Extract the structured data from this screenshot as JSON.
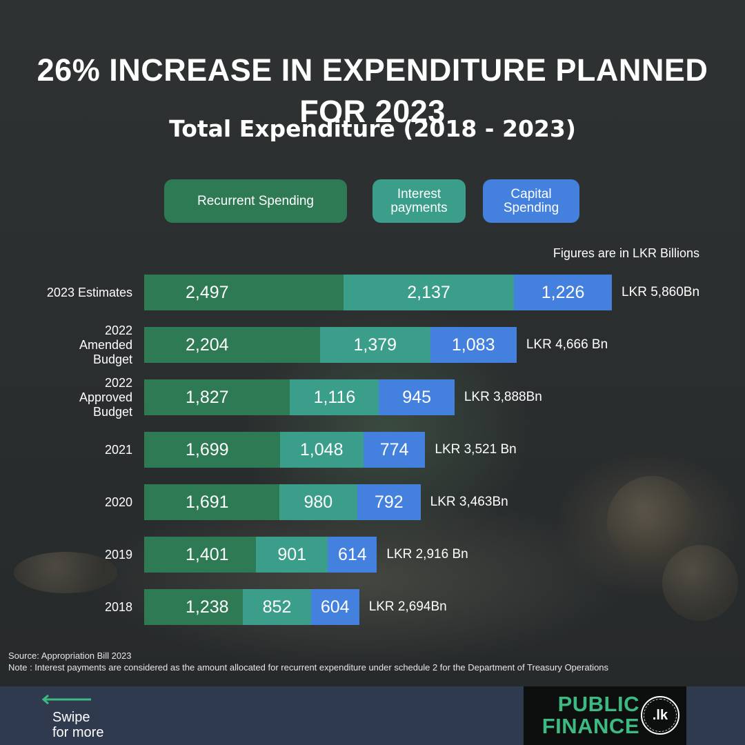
{
  "headline": "26% INCREASE IN EXPENDITURE PLANNED FOR 2023",
  "units_note": "Figures are in LKR Billions",
  "colors": {
    "recurrent": "#2e7a54",
    "interest": "#3a9e8a",
    "capital": "#4480dd",
    "footer": "#2f3a4f",
    "logo_text": "#3dba82"
  },
  "chart_data": {
    "type": "bar",
    "orientation": "horizontal",
    "stacked": true,
    "title": "Total Expenditure (2018 - 2023)",
    "categories": [
      "2023 Estimates",
      "2022\nAmended\nBudget",
      "2022\nApproved\nBudget",
      "2021",
      "2020",
      "2019",
      "2018"
    ],
    "series": [
      {
        "name": "Recurrent Spending",
        "values": [
          2497,
          2204,
          1827,
          1699,
          1691,
          1401,
          1238
        ],
        "labels": [
          "2,497",
          "2,204",
          "1,827",
          "1,699",
          "1,691",
          "1,401",
          "1,238"
        ]
      },
      {
        "name": "Interest\npayments",
        "values": [
          2137,
          1379,
          1116,
          1048,
          980,
          901,
          852
        ],
        "labels": [
          "2,137",
          "1,379",
          "1,116",
          "1,048",
          "980",
          "901",
          "852"
        ]
      },
      {
        "name": "Capital\nSpending",
        "values": [
          1226,
          1083,
          945,
          774,
          792,
          614,
          604
        ],
        "labels": [
          "1,226",
          "1,083",
          "945",
          "774",
          "792",
          "614",
          "604"
        ]
      }
    ],
    "totals": [
      "LKR 5,860Bn",
      "LKR 4,666 Bn",
      "LKR 3,888Bn",
      "LKR 3,521 Bn",
      "LKR 3,463Bn",
      "LKR 2,916 Bn",
      "LKR 2,694Bn"
    ],
    "legend": "top",
    "grid": false
  },
  "footnotes": {
    "source": "Source: Appropriation Bill 2023",
    "note": "Note : Interest payments are considered as the amount allocated for recurrent expenditure under schedule 2 for the Department of Treasury Operations"
  },
  "footer": {
    "swipe_text": "Swipe\nfor more",
    "swipe_icon": "arrow-left-icon",
    "logo_text": "PUBLIC\nFINANCE",
    "logo_seal": ".lk"
  }
}
